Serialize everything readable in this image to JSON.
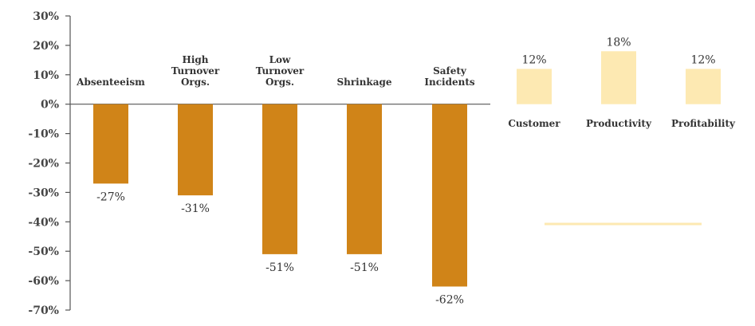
{
  "chart_data": {
    "type": "bar",
    "title": "",
    "xlabel": "",
    "ylabel": "",
    "ylim": [
      -70,
      30
    ],
    "y_ticks": [
      "30%",
      "20%",
      "10%",
      "0%",
      "-10%",
      "-20%",
      "-30%",
      "-40%",
      "-50%",
      "-60%",
      "-70%"
    ],
    "y_tick_values": [
      30,
      20,
      10,
      0,
      -10,
      -20,
      -30,
      -40,
      -50,
      -60,
      -70
    ],
    "categories": [
      [
        "Absenteeism"
      ],
      [
        "High",
        "Turnover",
        "Orgs."
      ],
      [
        "Low",
        "Turnover",
        "Orgs."
      ],
      [
        "Shrinkage"
      ],
      [
        "Safety",
        "Incidents"
      ],
      [
        "Customer"
      ],
      [
        "Productivity"
      ],
      [
        "Profitability"
      ]
    ],
    "values": [
      -27,
      -31,
      -51,
      -51,
      -62,
      12,
      18,
      12
    ],
    "value_labels": [
      "-27%",
      "-31%",
      "-51%",
      "-51%",
      "-62%",
      "12%",
      "18%",
      "12%"
    ],
    "colors": {
      "negative": "#D08418",
      "positive": "#FDE9B2",
      "axis": "#555555",
      "decor_line": "#FDE9B2"
    },
    "grid": false,
    "legend": "none"
  }
}
